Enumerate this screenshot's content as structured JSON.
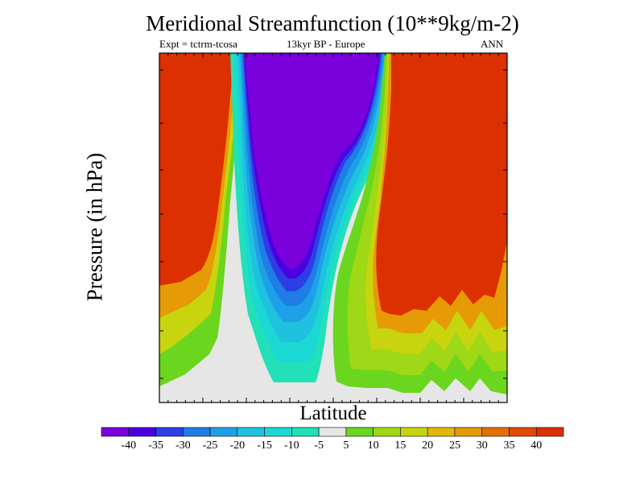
{
  "chart_data": {
    "type": "heatmap",
    "title": "Meridional Streamfunction (10**9kg/m-2)",
    "subtitle_left": "Expt = tctrm-tcosa",
    "subtitle_center": "13kyr BP - Europe",
    "subtitle_right": "ANN",
    "xlabel": "Latitude",
    "ylabel": "Pressure (in hPa)",
    "levels": [
      -40,
      -35,
      -30,
      -25,
      -20,
      -15,
      -10,
      -5,
      5,
      10,
      15,
      20,
      25,
      30,
      35,
      40
    ],
    "colorbar_labels": [
      "-40",
      "-35",
      "-30",
      "-25",
      "-20",
      "-15",
      "-10",
      "-5",
      "5",
      "10",
      "15",
      "20",
      "25",
      "30",
      "35",
      "40"
    ],
    "colorbar_colors": [
      "#7a00dc",
      "#4a00e0",
      "#2c3fe6",
      "#1f7ee6",
      "#1ea0e8",
      "#1fc2de",
      "#1ad8d4",
      "#22e0b8",
      "#e6e6e6",
      "#6ad61e",
      "#9ed816",
      "#c8d40e",
      "#e2b80a",
      "#e69a06",
      "#e27004",
      "#e04a02",
      "#dc3000"
    ],
    "fields": {
      "left_positive_cell": {
        "sign": "positive",
        "max_value": 40
      },
      "central_negative_cell": {
        "sign": "negative",
        "min_value": -40
      },
      "right_positive_cell": {
        "sign": "positive",
        "max_value": 40
      }
    }
  }
}
